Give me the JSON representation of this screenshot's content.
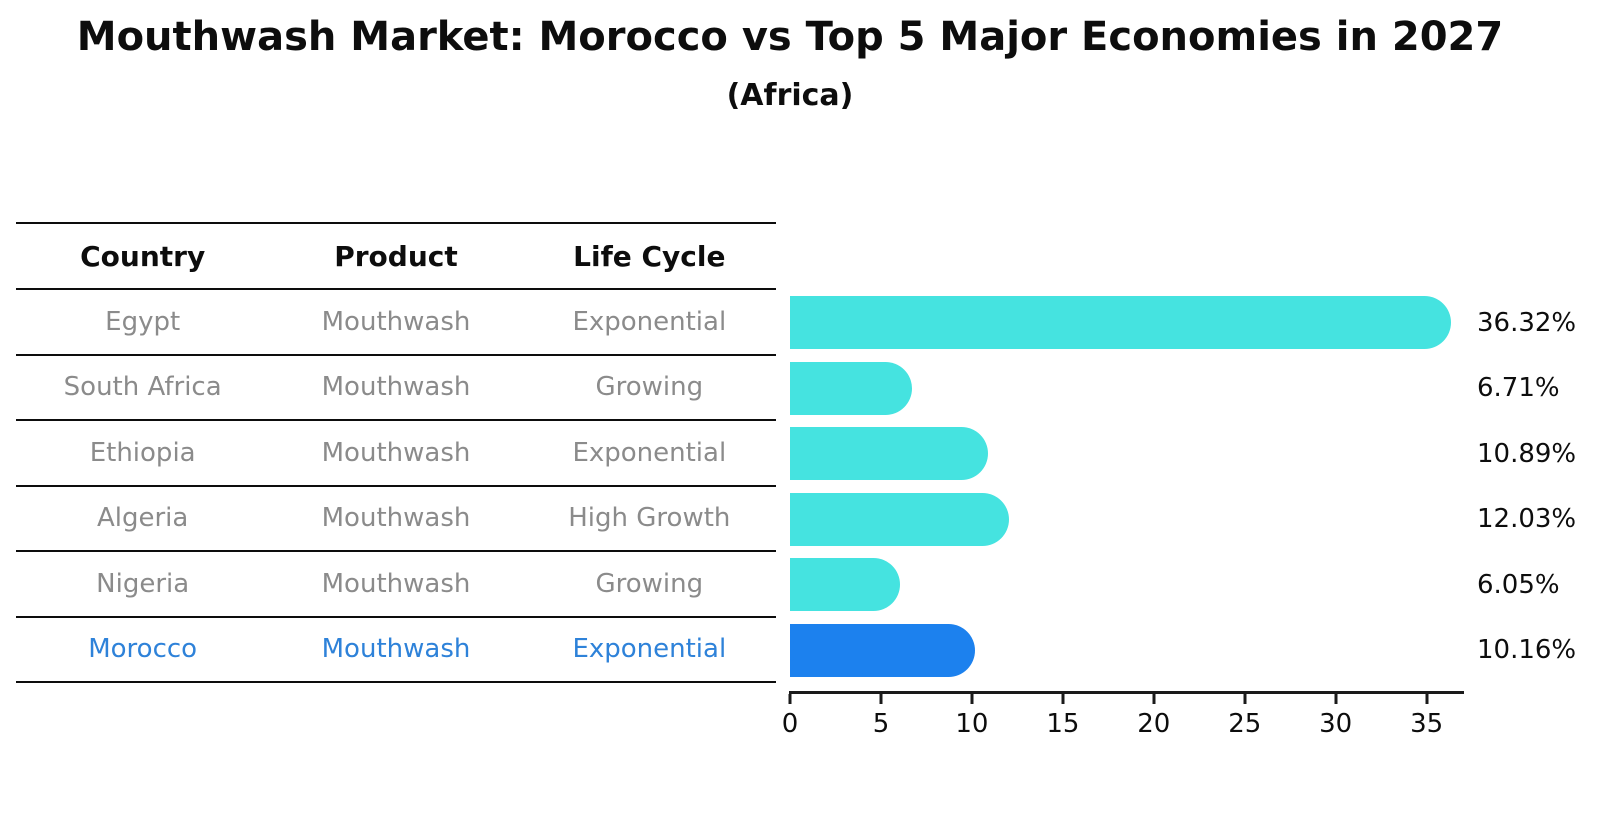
{
  "title": "Mouthwash Market: Morocco vs Top 5 Major Economies in 2027",
  "subtitle": "(Africa)",
  "table": {
    "columns": [
      "Country",
      "Product",
      "Life Cycle"
    ],
    "rows": [
      {
        "country": "Egypt",
        "product": "Mouthwash",
        "life_cycle": "Exponential",
        "highlight": false
      },
      {
        "country": "South Africa",
        "product": "Mouthwash",
        "life_cycle": "Growing",
        "highlight": false
      },
      {
        "country": "Ethiopia",
        "product": "Mouthwash",
        "life_cycle": "Exponential",
        "highlight": false
      },
      {
        "country": "Algeria",
        "product": "Mouthwash",
        "life_cycle": "High Growth",
        "highlight": false
      },
      {
        "country": "Nigeria",
        "product": "Mouthwash",
        "life_cycle": "Growing",
        "highlight": false
      },
      {
        "country": "Morocco",
        "product": "Mouthwash",
        "life_cycle": "Exponential",
        "highlight": true
      }
    ]
  },
  "chart_data": {
    "type": "bar",
    "orientation": "horizontal",
    "title": "Mouthwash Market: Morocco vs Top 5 Major Economies in 2027",
    "subtitle": "(Africa)",
    "categories": [
      "Egypt",
      "South Africa",
      "Ethiopia",
      "Algeria",
      "Nigeria",
      "Morocco"
    ],
    "values": [
      36.32,
      6.71,
      10.89,
      12.03,
      6.05,
      10.16
    ],
    "value_labels": [
      "36.32%",
      "6.71%",
      "10.89%",
      "12.03%",
      "6.05%",
      "10.16%"
    ],
    "x_ticks": [
      0,
      5,
      10,
      15,
      20,
      25,
      30,
      35
    ],
    "xlim": [
      0,
      37.1
    ],
    "grid": false,
    "legend": false,
    "highlight_index": 5
  },
  "colors": {
    "bar": "#45e3e0",
    "highlight_bar": "#1c81ee",
    "highlight_border": "#1c81ee",
    "highlight_text": "#2e82d9",
    "cell_text": "#8b8b8b",
    "header_text": "#0d0d0d"
  }
}
